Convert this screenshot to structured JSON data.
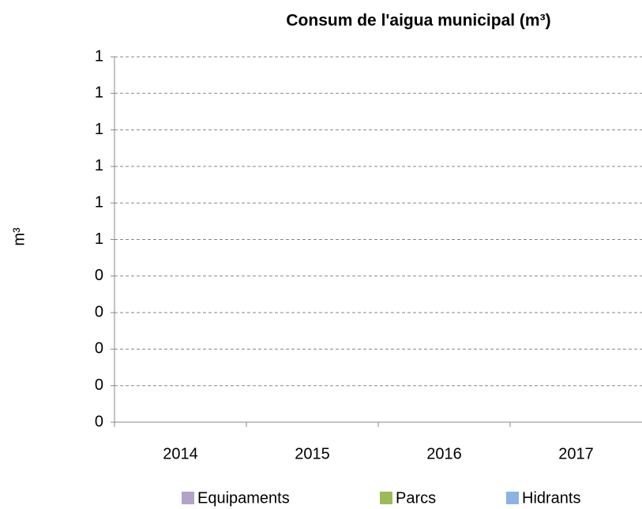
{
  "chart_data": {
    "type": "bar",
    "stacked": true,
    "title": "Consum de l'aigua municipal (m³)",
    "y_label": "m³",
    "categories": [
      "2014",
      "2015",
      "2016",
      "2017"
    ],
    "series": [
      {
        "name": "Equipaments",
        "color": "#b3a2c7",
        "values": [
          0,
          0,
          0,
          0
        ]
      },
      {
        "name": "Parcs",
        "color": "#9bbb59",
        "values": [
          0,
          0,
          0,
          0
        ]
      },
      {
        "name": "Hidrants",
        "color": "#8db3e2",
        "values": [
          0,
          0,
          0,
          0
        ]
      }
    ],
    "ylim": [
      0,
      1
    ],
    "yticks": [
      0,
      {
        "value": 0.1,
        "label": "0"
      },
      {
        "value": 0.2,
        "label": "0"
      },
      {
        "value": 0.3,
        "label": "0"
      },
      {
        "value": 0.4,
        "label": "0"
      },
      {
        "value": 0.5,
        "label": "1"
      },
      {
        "value": 0.6,
        "label": "1"
      },
      {
        "value": 0.7,
        "label": "1"
      },
      {
        "value": 0.8,
        "label": "1"
      },
      {
        "value": 0.9,
        "label": "1"
      },
      1
    ],
    "grid": true,
    "legend": "bottom"
  }
}
